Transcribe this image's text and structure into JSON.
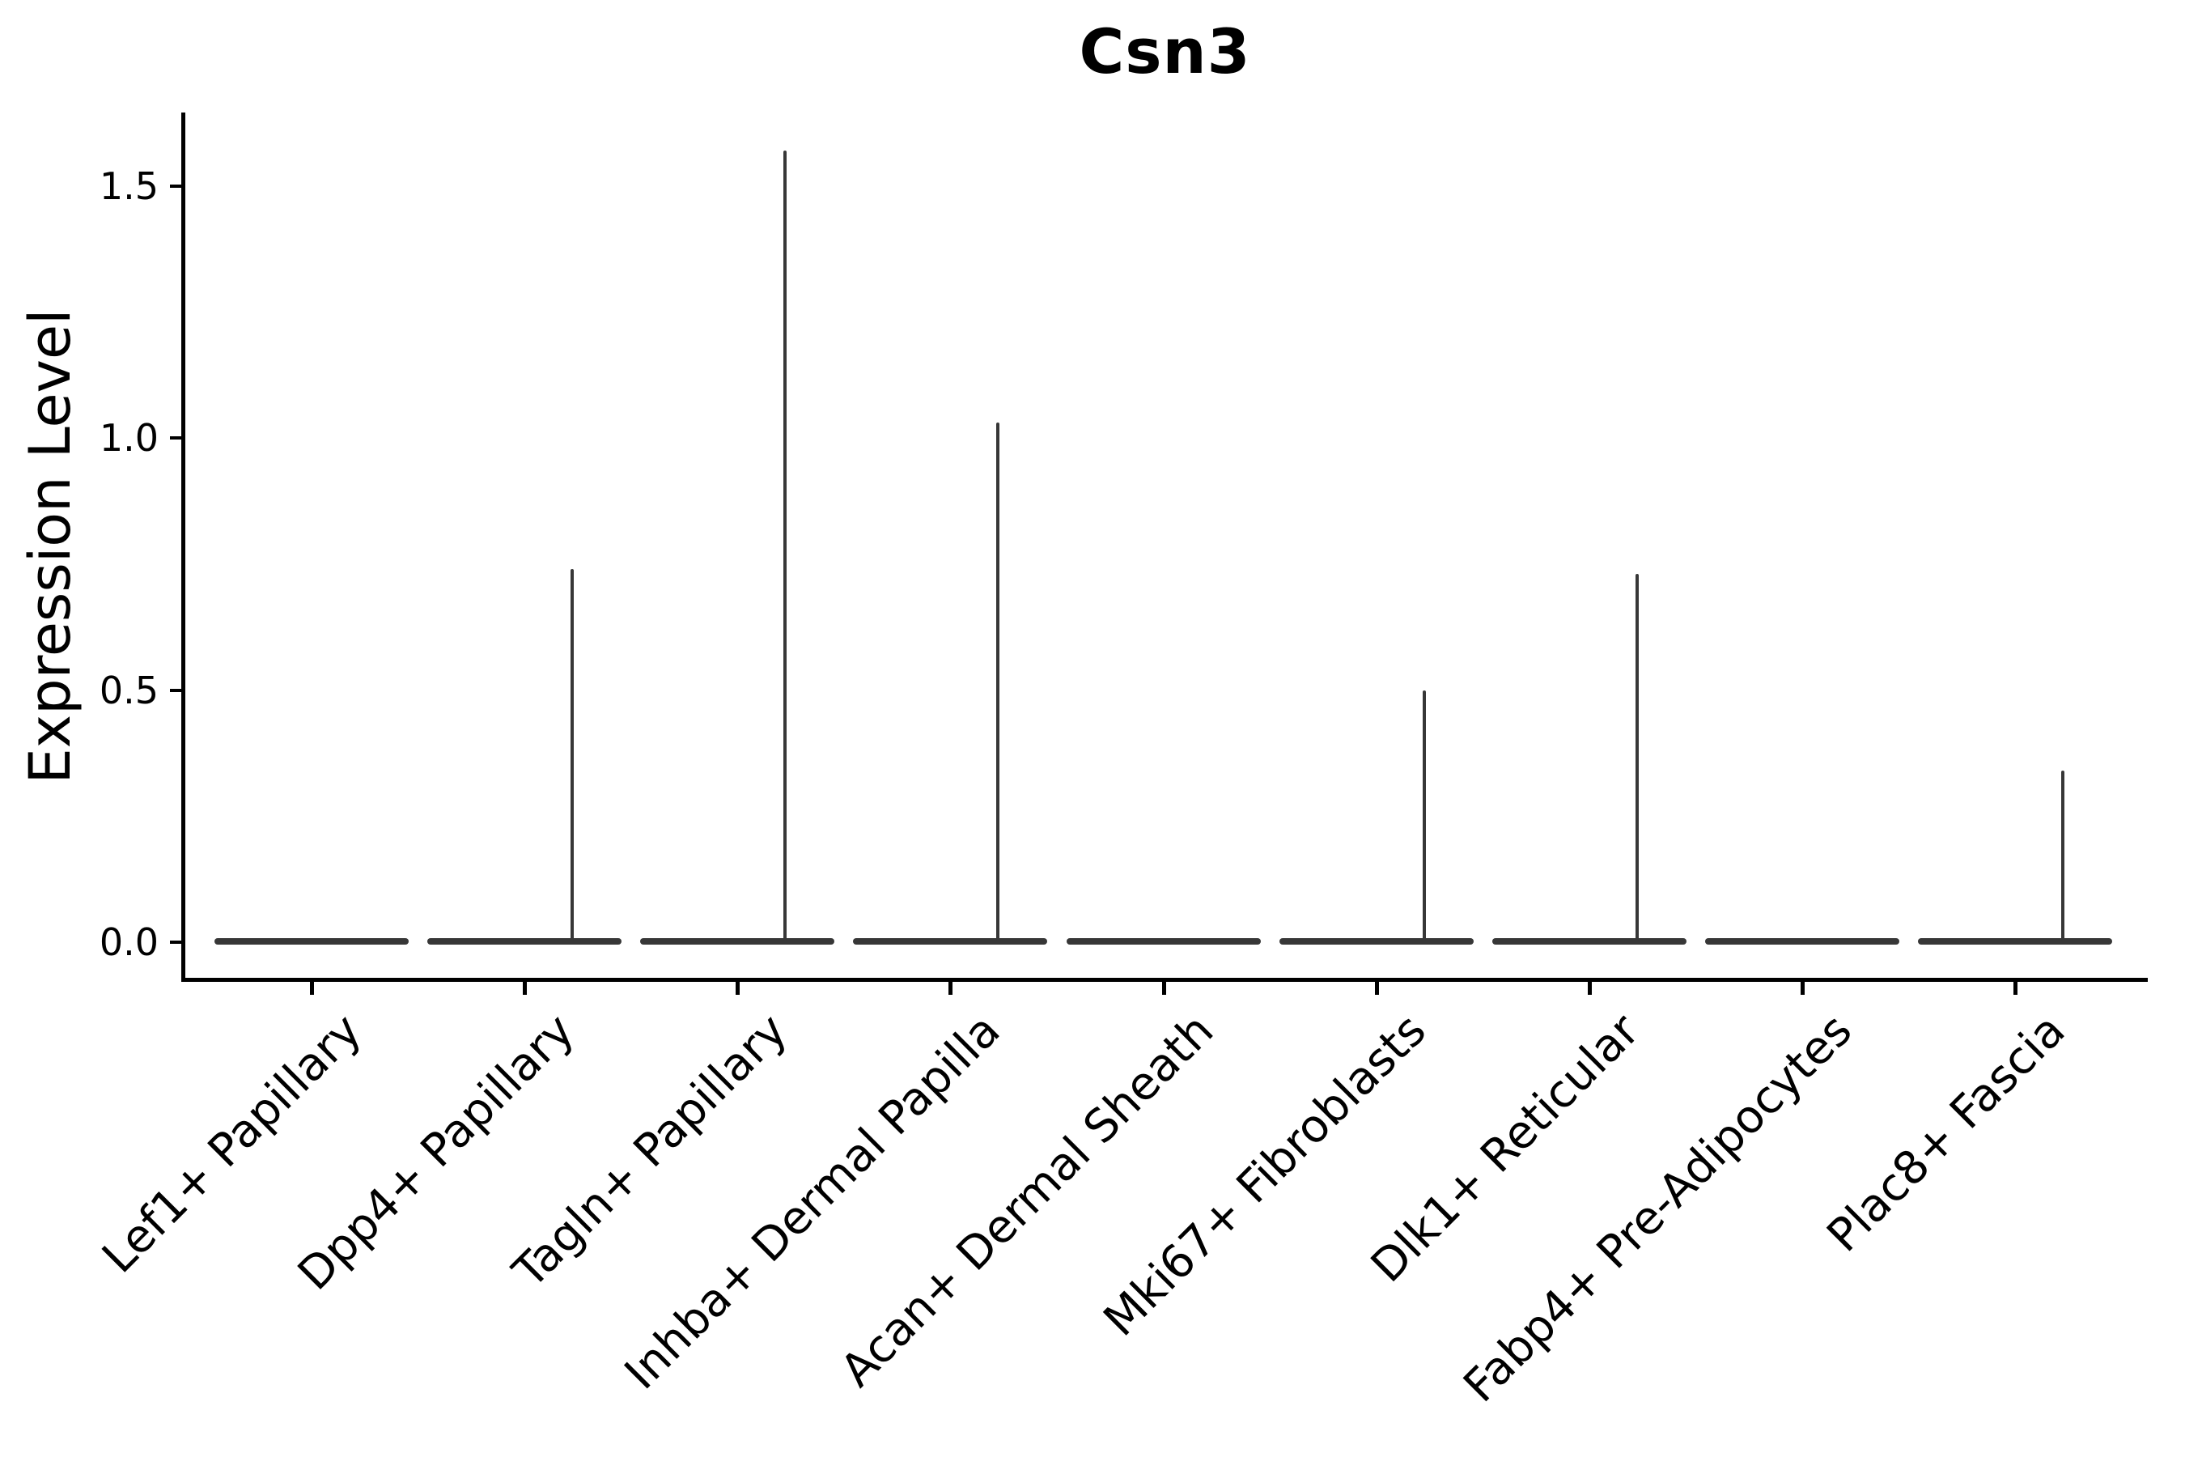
{
  "chart_data": {
    "type": "violin",
    "title": "Csn3",
    "xlabel": "",
    "ylabel": "Expression Level",
    "categories": [
      "Lef1+ Papillary",
      "Dpp4+ Papillary",
      "Tagln+ Papillary",
      "Inhba+ Dermal Papilla",
      "Acan+ Dermal Sheath",
      "Mki67+ Fibroblasts",
      "Dlk1+ Reticular",
      "Fabp4+ Pre-Adipocytes",
      "Plac8+ Fascia"
    ],
    "series": [
      {
        "name": "Csn3 expression (violin: flat density body at 0 with thin spike to max value)",
        "values": [
          0,
          0.74,
          1.57,
          1.03,
          0,
          0.5,
          0.73,
          0,
          0.34
        ]
      }
    ],
    "body_at_zero": true,
    "ytick_labels": [
      "0.0",
      "0.5",
      "1.0",
      "1.5"
    ],
    "ytick_values": [
      0.0,
      0.5,
      1.0,
      1.5
    ],
    "ylim": [
      -0.07,
      1.64
    ],
    "grid": false,
    "legend": null,
    "colors": {
      "violin": "#373737",
      "axis": "#000000",
      "text": "#000000",
      "background": "#ffffff"
    }
  }
}
